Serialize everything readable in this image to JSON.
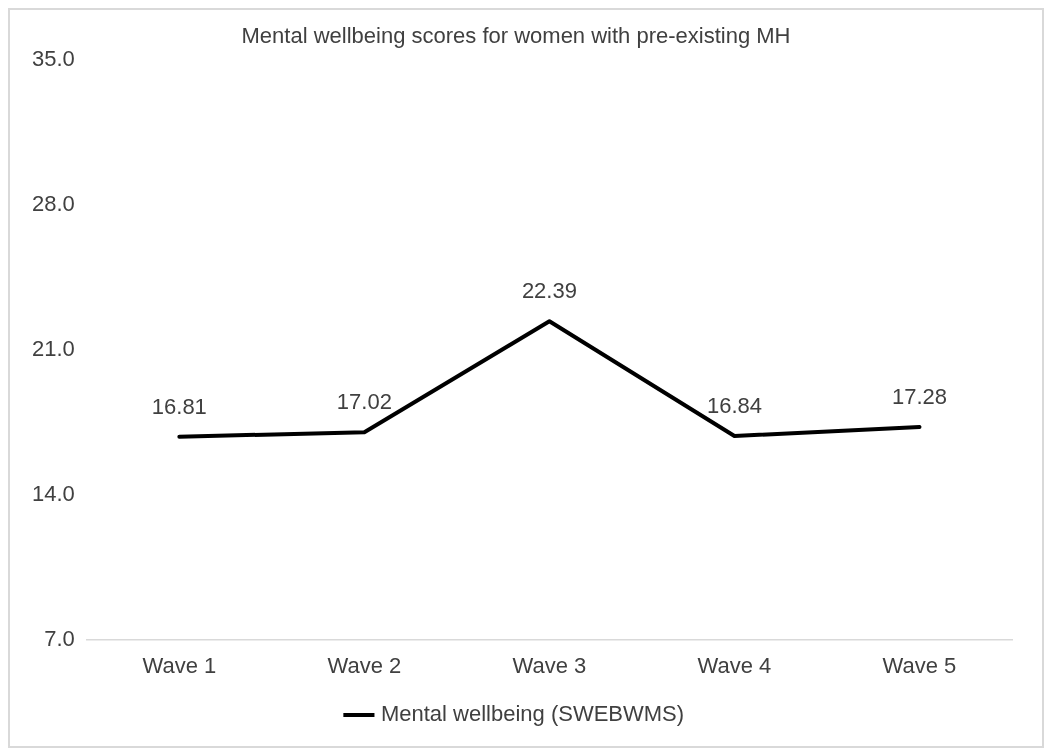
{
  "chart_data": {
    "type": "line",
    "title": "Mental wellbeing scores for women with pre-existing MH",
    "categories": [
      "Wave 1",
      "Wave 2",
      "Wave 3",
      "Wave 4",
      "Wave 5"
    ],
    "series": [
      {
        "name": "Mental wellbeing (SWEBWMS)",
        "color": "#000000",
        "values": [
          16.81,
          17.02,
          22.39,
          16.84,
          17.28
        ]
      }
    ],
    "ylim": [
      7,
      35
    ],
    "yticks": [
      {
        "value": 7,
        "label": "7.0"
      },
      {
        "value": 14,
        "label": "14.0"
      },
      {
        "value": 21,
        "label": "21.0"
      },
      {
        "value": 28,
        "label": "28.0"
      },
      {
        "value": 35,
        "label": "35.0"
      }
    ],
    "grid": false,
    "legend": "bottom",
    "data_labels": true,
    "marker": "none",
    "line_style": "solid"
  }
}
